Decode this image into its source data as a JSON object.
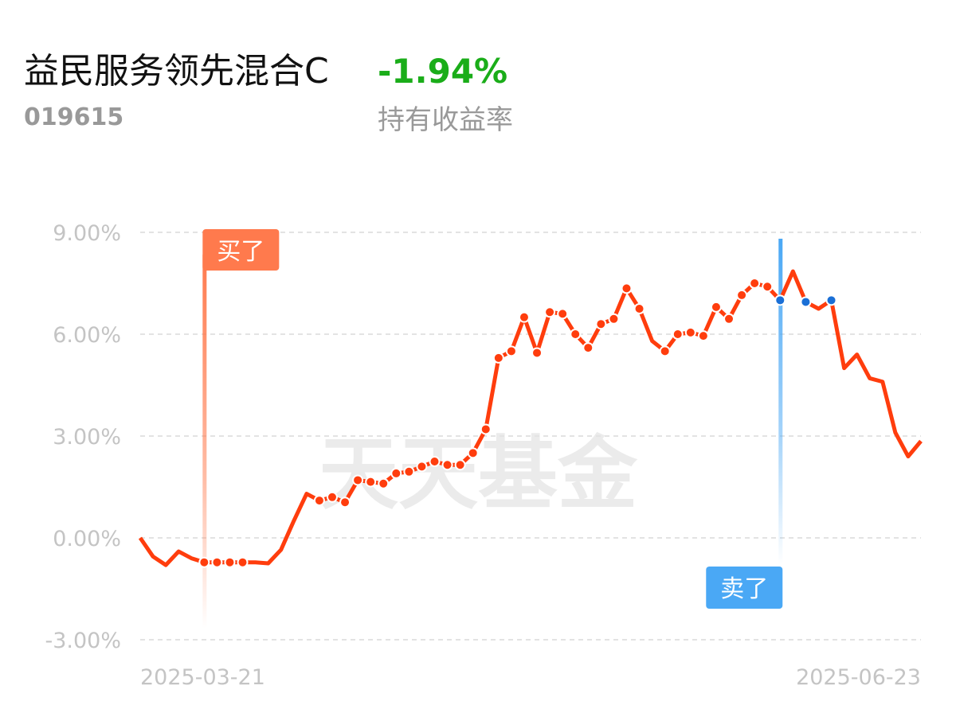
{
  "chart_data": {
    "type": "line",
    "title": "益民服务领先混合C",
    "code": "019615",
    "return": {
      "value": -1.94,
      "value_label": "-1.94%",
      "label": "持有收益率",
      "color": "#1aad19"
    },
    "watermark": "天天基金",
    "ylim": [
      -3,
      9
    ],
    "yticks": [
      {
        "value": 9,
        "label": "9.00%"
      },
      {
        "value": 6,
        "label": "6.00%"
      },
      {
        "value": 3,
        "label": "3.00%"
      },
      {
        "value": 0,
        "label": "0.00%"
      },
      {
        "value": -3,
        "label": "-3.00%"
      }
    ],
    "grid": true,
    "categories": [
      null,
      null,
      null,
      null,
      null,
      "2025-03-21",
      null,
      null,
      null,
      null,
      null,
      null,
      null,
      null,
      null,
      null,
      null,
      null,
      null,
      null,
      null,
      null,
      null,
      null,
      null,
      null,
      null,
      null,
      null,
      null,
      null,
      null,
      null,
      null,
      null,
      null,
      null,
      null,
      null,
      null,
      null,
      null,
      null,
      null,
      null,
      null,
      null,
      null,
      null,
      null,
      null,
      null,
      null,
      null,
      null,
      null,
      null,
      null,
      null,
      null,
      null,
      "2025-06-23"
    ],
    "series": [
      {
        "color": "#ff3d0d",
        "values": [
          0.0,
          -0.55,
          -0.8,
          -0.4,
          -0.6,
          -0.72,
          -0.72,
          -0.72,
          -0.72,
          -0.72,
          -0.75,
          -0.35,
          0.5,
          1.3,
          1.1,
          1.2,
          1.05,
          1.7,
          1.65,
          1.6,
          1.9,
          1.95,
          2.1,
          2.25,
          2.15,
          2.15,
          2.5,
          3.2,
          5.3,
          5.5,
          6.5,
          5.45,
          6.65,
          6.6,
          6.0,
          5.6,
          6.3,
          6.45,
          7.35,
          6.75,
          5.8,
          5.5,
          6.0,
          6.05,
          5.95,
          6.8,
          6.45,
          7.15,
          7.5,
          7.4,
          7.0,
          7.85,
          6.95,
          6.75,
          7.0,
          5.0,
          5.4,
          4.7,
          4.6,
          3.1,
          2.4,
          2.85
        ],
        "marker_colors": [
          null,
          null,
          null,
          null,
          null,
          "#ff3d0d",
          "#ff3d0d",
          "#ff3d0d",
          "#ff3d0d",
          null,
          null,
          null,
          null,
          null,
          "#ff3d0d",
          "#ff3d0d",
          "#ff3d0d",
          "#ff3d0d",
          "#ff3d0d",
          "#ff3d0d",
          "#ff3d0d",
          "#ff3d0d",
          "#ff3d0d",
          "#ff3d0d",
          "#ff3d0d",
          "#ff3d0d",
          "#ff3d0d",
          "#ff3d0d",
          "#ff3d0d",
          "#ff3d0d",
          "#ff3d0d",
          "#ff3d0d",
          "#ff3d0d",
          "#ff3d0d",
          "#ff3d0d",
          "#ff3d0d",
          "#ff3d0d",
          "#ff3d0d",
          "#ff3d0d",
          "#ff3d0d",
          null,
          "#ff3d0d",
          "#ff3d0d",
          "#ff3d0d",
          "#ff3d0d",
          "#ff3d0d",
          "#ff3d0d",
          "#ff3d0d",
          "#ff3d0d",
          "#ff3d0d",
          "#1a6fd6",
          null,
          "#1a6fd6",
          null,
          "#1a6fd6",
          null,
          null,
          null,
          null,
          null,
          null,
          null
        ]
      }
    ],
    "annotations": [
      {
        "text": "买了",
        "at": 5,
        "color": "#ff7a4d"
      },
      {
        "text": "卖了",
        "at": 50,
        "color": "#4aa8f5"
      }
    ]
  }
}
